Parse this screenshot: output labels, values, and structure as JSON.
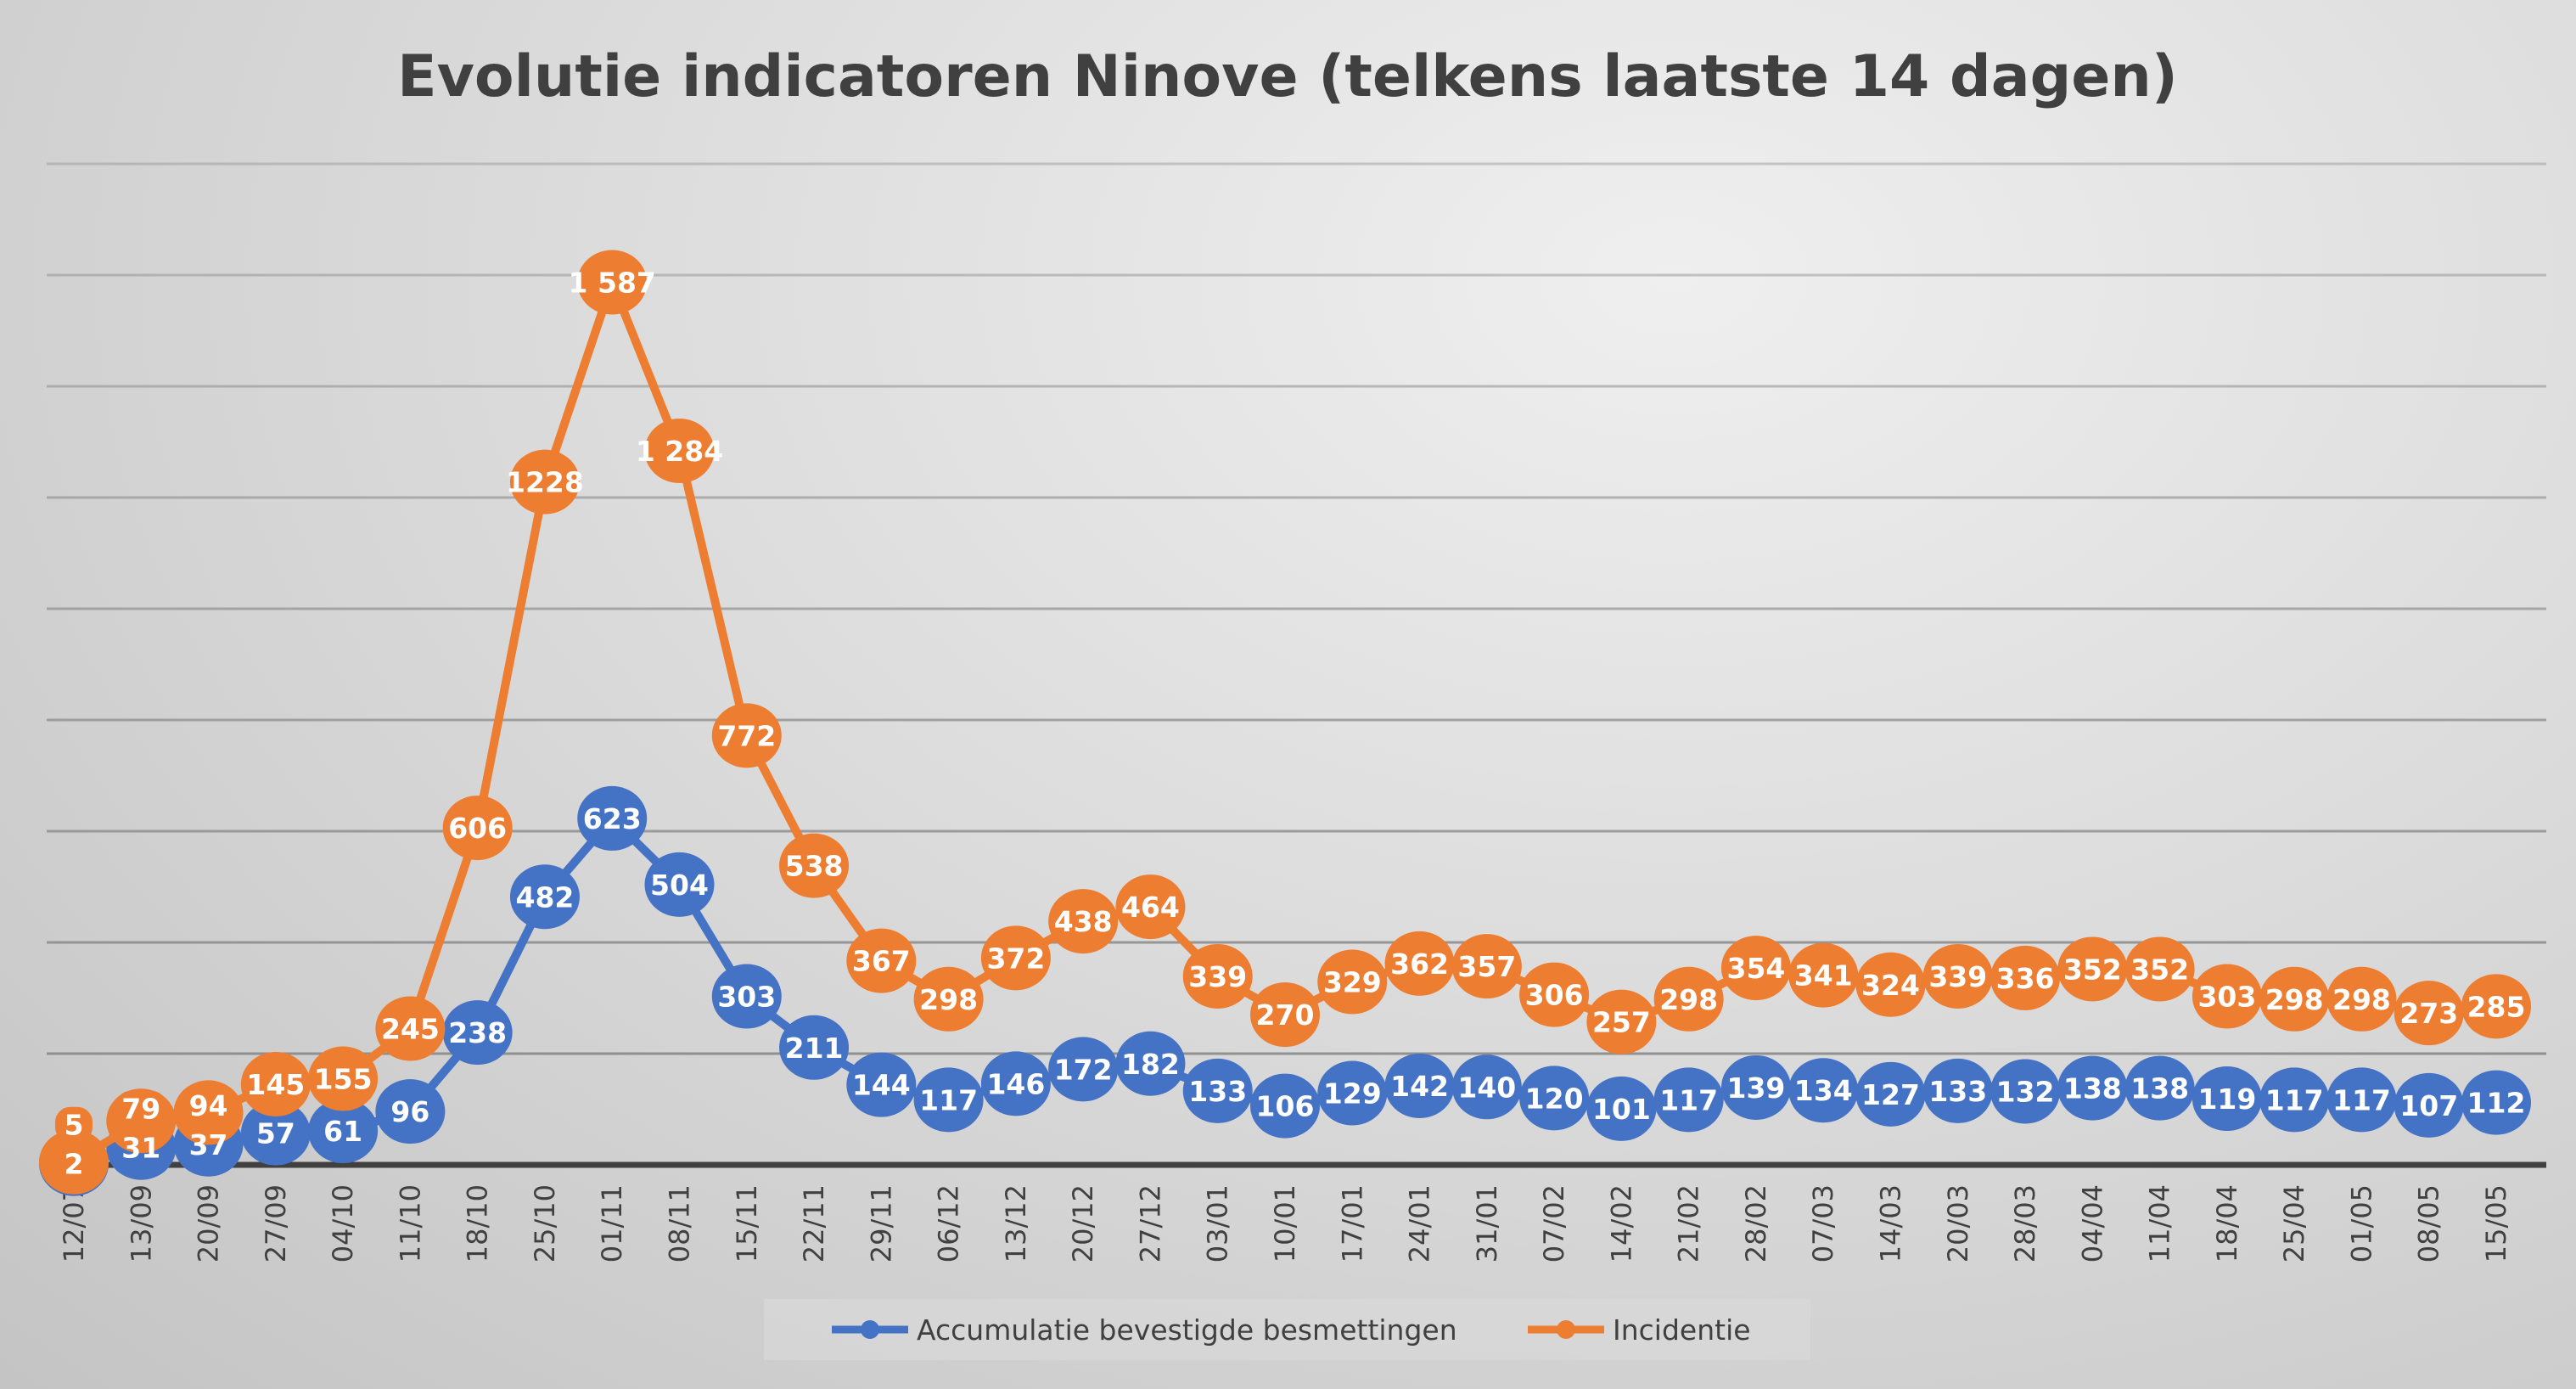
{
  "chart_data": {
    "type": "line",
    "title": "Evolutie indicatoren Ninove (telkens laatste 14 dagen)",
    "xlabel": "",
    "ylabel": "",
    "ylim": [
      0,
      1800
    ],
    "grid": true,
    "legend_position": "bottom",
    "categories": [
      "12/07",
      "13/09",
      "20/09",
      "27/09",
      "04/10",
      "11/10",
      "18/10",
      "25/10",
      "01/11",
      "08/11",
      "15/11",
      "22/11",
      "29/11",
      "06/12",
      "13/12",
      "20/12",
      "27/12",
      "03/01",
      "10/01",
      "17/01",
      "24/01",
      "31/01",
      "07/02",
      "14/02",
      "21/02",
      "28/02",
      "07/03",
      "14/03",
      "20/03",
      "28/03",
      "04/04",
      "11/04",
      "18/04",
      "25/04",
      "01/05",
      "08/05",
      "15/05"
    ],
    "series": [
      {
        "name": "Accumulatie bevestigde besmettingen",
        "color": "#4472c4",
        "values": [
          2,
          31,
          37,
          57,
          61,
          96,
          238,
          482,
          623,
          504,
          303,
          211,
          144,
          117,
          146,
          172,
          182,
          133,
          106,
          129,
          142,
          140,
          120,
          101,
          117,
          139,
          134,
          127,
          133,
          132,
          138,
          138,
          119,
          117,
          117,
          107,
          112
        ],
        "labels": [
          "2",
          "31",
          "37",
          "57",
          "61",
          "96",
          "238",
          "482",
          "623",
          "504",
          "303",
          "211",
          "144",
          "117",
          "146",
          "172",
          "182",
          "133",
          "106",
          "129",
          "142",
          "140",
          "120",
          "101",
          "117",
          "139",
          "134",
          "127",
          "133",
          "132",
          "138",
          "138",
          "119",
          "117",
          "117",
          "107",
          "112"
        ]
      },
      {
        "name": "Incidentie",
        "color": "#ed7d31",
        "values": [
          5,
          79,
          94,
          145,
          155,
          245,
          606,
          1228,
          1587,
          1284,
          772,
          538,
          367,
          298,
          372,
          438,
          464,
          339,
          270,
          329,
          362,
          357,
          306,
          257,
          298,
          354,
          341,
          324,
          339,
          336,
          352,
          352,
          303,
          298,
          298,
          273,
          285
        ],
        "labels": [
          "5",
          "79",
          "94",
          "145",
          "155",
          "245",
          "606",
          "1228",
          "1 587",
          "1 284",
          "772",
          "538",
          "367",
          "298",
          "372",
          "438",
          "464",
          "339",
          "270",
          "329",
          "362",
          "357",
          "306",
          "257",
          "298",
          "354",
          "341",
          "324",
          "339",
          "336",
          "352",
          "352",
          "303",
          "298",
          "298",
          "273",
          "285"
        ]
      }
    ]
  }
}
